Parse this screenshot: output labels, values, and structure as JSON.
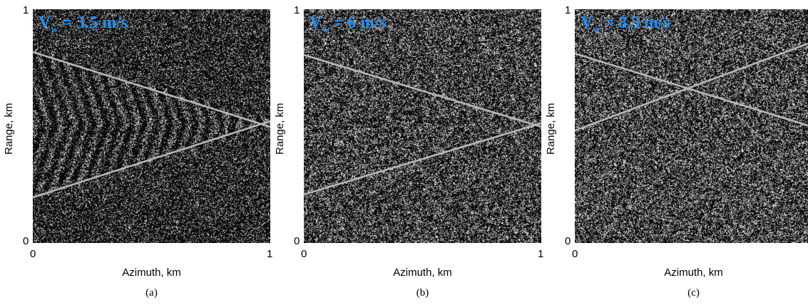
{
  "axis": {
    "ylabel": "Range, km",
    "xlabel": "Azimuth, km",
    "tick_zero": "0",
    "tick_one": "1"
  },
  "panels": [
    {
      "speed_main": "V",
      "speed_sub": "w",
      "speed_value": " = 3.5 m/s",
      "caption": "(a)",
      "show_x_right_tick": true,
      "line_color": "#b0b0b0"
    },
    {
      "speed_main": "V",
      "speed_sub": "w",
      "speed_value": " = 6 m/s",
      "caption": "(b)",
      "show_x_right_tick": true,
      "line_color": "#b0b0b0"
    },
    {
      "speed_main": "V",
      "speed_sub": "w",
      "speed_value": " = 8.5 m/s",
      "caption": "(c)",
      "show_x_right_tick": false,
      "line_color": "#b0b0b0"
    }
  ],
  "label_color": "#1e90ff"
}
